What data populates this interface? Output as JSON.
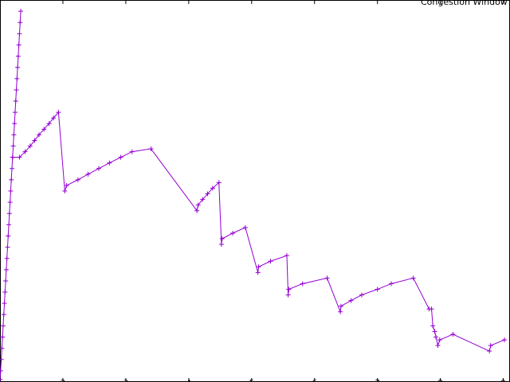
{
  "chart_data": {
    "type": "line",
    "title": "",
    "xlabel": "",
    "ylabel": "",
    "xlim": [
      1,
      10
    ],
    "ylim": [
      0,
      68
    ],
    "x_ticks": [
      "1",
      "2",
      "3",
      "4",
      "5",
      "6",
      "7",
      "8",
      "9",
      "10"
    ],
    "legend_placement": "top-right",
    "grid": false,
    "series": [
      {
        "name": "Congestion Window",
        "color": "#9400d3",
        "marker": "plus",
        "points": [
          [
            1.0,
            0.5
          ],
          [
            1.01,
            2
          ],
          [
            1.02,
            4
          ],
          [
            1.03,
            6
          ],
          [
            1.04,
            8
          ],
          [
            1.05,
            10
          ],
          [
            1.06,
            12
          ],
          [
            1.07,
            14
          ],
          [
            1.08,
            16
          ],
          [
            1.09,
            18
          ],
          [
            1.1,
            20
          ],
          [
            1.11,
            22
          ],
          [
            1.12,
            24
          ],
          [
            1.13,
            26
          ],
          [
            1.14,
            28
          ],
          [
            1.15,
            30
          ],
          [
            1.16,
            32
          ],
          [
            1.17,
            34
          ],
          [
            1.18,
            36
          ],
          [
            1.19,
            38
          ],
          [
            1.2,
            40
          ],
          [
            1.21,
            42
          ],
          [
            1.22,
            44
          ],
          [
            1.23,
            46
          ],
          [
            1.24,
            48
          ],
          [
            1.25,
            50
          ],
          [
            1.26,
            52
          ],
          [
            1.27,
            54
          ],
          [
            1.28,
            56
          ],
          [
            1.29,
            58
          ],
          [
            1.3,
            60
          ],
          [
            1.31,
            62
          ],
          [
            1.32,
            64
          ],
          [
            1.33,
            66
          ],
          [
            1.2,
            40
          ],
          [
            1.31,
            40
          ],
          [
            1.4,
            41
          ],
          [
            1.48,
            42
          ],
          [
            1.55,
            43
          ],
          [
            1.62,
            44
          ],
          [
            1.7,
            45
          ],
          [
            1.78,
            46
          ],
          [
            1.85,
            47
          ],
          [
            1.93,
            48
          ],
          [
            2.03,
            34
          ],
          [
            2.06,
            35
          ],
          [
            2.24,
            36
          ],
          [
            2.4,
            37
          ],
          [
            2.57,
            38
          ],
          [
            2.74,
            39
          ],
          [
            2.92,
            40
          ],
          [
            3.1,
            41
          ],
          [
            3.4,
            41.5
          ],
          [
            4.13,
            30.5
          ],
          [
            4.15,
            31.5
          ],
          [
            4.22,
            32.5
          ],
          [
            4.3,
            33.5
          ],
          [
            4.38,
            34.5
          ],
          [
            4.48,
            35.5
          ],
          [
            4.52,
            24.5
          ],
          [
            4.53,
            25.5
          ],
          [
            4.7,
            26.5
          ],
          [
            4.9,
            27.5
          ],
          [
            5.1,
            19.5
          ],
          [
            5.11,
            20.5
          ],
          [
            5.3,
            21.5
          ],
          [
            5.56,
            22.5
          ],
          [
            5.58,
            15.5
          ],
          [
            5.59,
            16.5
          ],
          [
            5.81,
            17.5
          ],
          [
            6.2,
            18.5
          ],
          [
            6.41,
            12.5
          ],
          [
            6.42,
            13.5
          ],
          [
            6.58,
            14.5
          ],
          [
            6.75,
            15.5
          ],
          [
            7.0,
            16.5
          ],
          [
            7.22,
            17.5
          ],
          [
            7.57,
            18.5
          ],
          [
            7.82,
            13
          ],
          [
            7.86,
            13
          ],
          [
            7.88,
            10
          ],
          [
            7.91,
            9
          ],
          [
            7.93,
            8
          ],
          [
            7.96,
            6.5
          ],
          [
            7.99,
            7.5
          ],
          [
            8.2,
            8.5
          ],
          [
            8.78,
            5.5
          ],
          [
            8.8,
            6.5
          ],
          [
            9.02,
            7.5
          ]
        ]
      }
    ]
  }
}
